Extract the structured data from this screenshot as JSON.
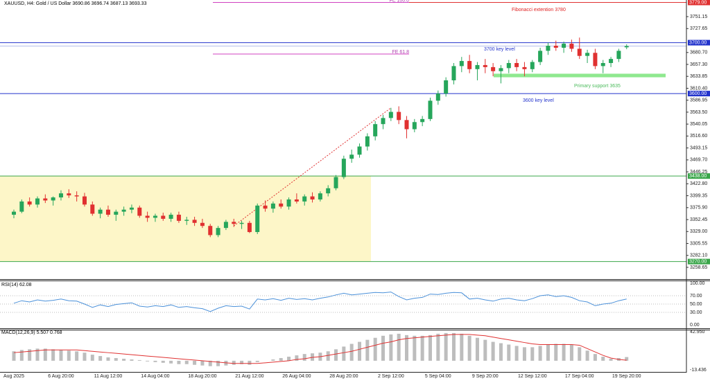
{
  "chart_data": [
    {
      "type": "candlestick",
      "title": "XAUUSD, H4:  Gold / US Dollar  3690.86 3696.74 3687.13 3693.33",
      "categories": [
        "Aug 2025",
        null,
        null,
        null,
        null,
        null,
        "6 Aug 20:00",
        null,
        null,
        null,
        null,
        null,
        "11 Aug 12:00",
        null,
        null,
        null,
        null,
        null,
        "14 Aug 04:00",
        null,
        null,
        null,
        null,
        null,
        "18 Aug 20:00",
        null,
        null,
        null,
        null,
        null,
        "21 Aug 12:00",
        null,
        null,
        null,
        null,
        null,
        "26 Aug 04:00",
        null,
        null,
        null,
        null,
        null,
        "28 Aug 20:00",
        null,
        null,
        null,
        null,
        null,
        "2 Sep 12:00",
        null,
        null,
        null,
        null,
        null,
        "5 Sep 04:00",
        null,
        null,
        null,
        null,
        null,
        "9 Sep 20:00",
        null,
        null,
        null,
        null,
        null,
        "12 Sep 12:00",
        null,
        null,
        null,
        null,
        null,
        "17 Sep 04:00",
        null,
        null,
        null,
        null,
        null,
        "19 Sep 20:00"
      ],
      "open": [
        3362,
        3368,
        3388,
        3382,
        3394,
        3390,
        3396,
        3404,
        3400,
        3398,
        3382,
        3364,
        3372,
        3362,
        3368,
        3372,
        3376,
        3360,
        3356,
        3360,
        3354,
        3362,
        3350,
        3352,
        3346,
        3340,
        3322,
        3336,
        3348,
        3344,
        3346,
        3328,
        3380,
        3374,
        3384,
        3378,
        3392,
        3388,
        3398,
        3392,
        3404,
        3414,
        3436,
        3472,
        3480,
        3496,
        3516,
        3540,
        3552,
        3564,
        3548,
        3530,
        3544,
        3550,
        3586,
        3600,
        3626,
        3654,
        3664,
        3648,
        3656,
        3652,
        3644,
        3650,
        3660,
        3652,
        3648,
        3662,
        3684,
        3694,
        3690,
        3698,
        3688,
        3674,
        3680,
        3654,
        3660,
        3668,
        3690.86
      ],
      "high": [
        3372,
        3392,
        3396,
        3398,
        3402,
        3398,
        3410,
        3412,
        3408,
        3405,
        3388,
        3376,
        3380,
        3372,
        3378,
        3382,
        3380,
        3368,
        3364,
        3366,
        3366,
        3368,
        3358,
        3358,
        3354,
        3344,
        3340,
        3352,
        3354,
        3350,
        3350,
        3384,
        3390,
        3388,
        3392,
        3396,
        3404,
        3402,
        3406,
        3408,
        3420,
        3440,
        3478,
        3490,
        3502,
        3522,
        3546,
        3558,
        3572,
        3575,
        3556,
        3550,
        3556,
        3592,
        3606,
        3632,
        3660,
        3672,
        3676,
        3662,
        3668,
        3660,
        3656,
        3666,
        3668,
        3662,
        3666,
        3690,
        3700,
        3704,
        3702,
        3706,
        3710,
        3686,
        3688,
        3666,
        3672,
        3688,
        3696.74
      ],
      "low": [
        3355,
        3365,
        3378,
        3376,
        3385,
        3380,
        3390,
        3395,
        3388,
        3378,
        3360,
        3355,
        3358,
        3350,
        3360,
        3365,
        3356,
        3348,
        3348,
        3350,
        3348,
        3346,
        3342,
        3340,
        3336,
        3318,
        3318,
        3332,
        3338,
        3334,
        3326,
        3324,
        3368,
        3366,
        3374,
        3372,
        3384,
        3380,
        3386,
        3388,
        3398,
        3410,
        3432,
        3464,
        3474,
        3488,
        3508,
        3530,
        3546,
        3540,
        3512,
        3524,
        3536,
        3546,
        3578,
        3594,
        3618,
        3642,
        3640,
        3626,
        3640,
        3634,
        3620,
        3640,
        3644,
        3634,
        3642,
        3656,
        3676,
        3684,
        3680,
        3682,
        3668,
        3660,
        3648,
        3640,
        3652,
        3662,
        3687.13
      ],
      "close": [
        3368,
        3388,
        3382,
        3394,
        3390,
        3396,
        3404,
        3400,
        3398,
        3382,
        3364,
        3372,
        3362,
        3368,
        3372,
        3376,
        3360,
        3356,
        3360,
        3354,
        3362,
        3350,
        3352,
        3346,
        3340,
        3322,
        3336,
        3348,
        3344,
        3346,
        3328,
        3380,
        3374,
        3384,
        3378,
        3392,
        3388,
        3398,
        3392,
        3404,
        3414,
        3436,
        3472,
        3480,
        3496,
        3516,
        3540,
        3552,
        3564,
        3548,
        3530,
        3544,
        3550,
        3586,
        3600,
        3626,
        3654,
        3664,
        3648,
        3656,
        3652,
        3644,
        3650,
        3660,
        3652,
        3648,
        3662,
        3684,
        3694,
        3690,
        3698,
        3688,
        3674,
        3680,
        3654,
        3660,
        3668,
        3684,
        3693.33
      ],
      "up_color": "#26a65b",
      "down_color": "#e03030",
      "ylim": [
        3258.65,
        3751.15
      ],
      "yticks": [
        {
          "value": 3751.15,
          "label": "3751.15"
        },
        {
          "value": 3727.65,
          "label": "3727.65"
        },
        {
          "value": 3680.7,
          "label": "3680.70"
        },
        {
          "value": 3657.3,
          "label": "3657.30"
        },
        {
          "value": 3633.85,
          "label": "3633.85"
        },
        {
          "value": 3610.4,
          "label": "3610.40"
        },
        {
          "value": 3586.95,
          "label": "3586.95"
        },
        {
          "value": 3563.5,
          "label": "3563.50"
        },
        {
          "value": 3540.05,
          "label": "3540.05"
        },
        {
          "value": 3516.6,
          "label": "3516.60"
        },
        {
          "value": 3493.15,
          "label": "3493.15"
        },
        {
          "value": 3469.7,
          "label": "3469.70"
        },
        {
          "value": 3446.25,
          "label": "3446.25"
        },
        {
          "value": 3422.8,
          "label": "3422.80"
        },
        {
          "value": 3399.35,
          "label": "3399.35"
        },
        {
          "value": 3375.9,
          "label": "3375.90"
        },
        {
          "value": 3352.45,
          "label": "3352.45"
        },
        {
          "value": 3329,
          "label": "3329.00"
        },
        {
          "value": 3305.55,
          "label": "3305.55"
        },
        {
          "value": 3282.1,
          "label": "3282.10"
        },
        {
          "value": 3258.65,
          "label": "3258.65"
        }
      ],
      "levels": [
        {
          "value": 3779,
          "label": "3779.00",
          "color": "#e03030"
        },
        {
          "value": 3700,
          "label": "3700.00",
          "color": "#2233cc"
        },
        {
          "value": 3600,
          "label": "3600.00",
          "color": "#2233cc"
        },
        {
          "value": 3438,
          "label": "3438.00",
          "color": "#3aa64a"
        },
        {
          "value": 3270,
          "label": "3270.00",
          "color": "#3aa64a"
        }
      ],
      "fib_levels": [
        {
          "value": 3779,
          "label": "FE 100.0"
        },
        {
          "value": 3677.7,
          "label": "FE 61.8"
        }
      ],
      "zones": [
        {
          "from": 3270,
          "to": 3438,
          "color": "#fdf6c8"
        },
        {
          "from": 3632,
          "to": 3639,
          "color": "#8fe88f"
        }
      ],
      "trendline": [
        3340,
        3572
      ],
      "annotations": [
        {
          "text": "Fibonacci extention 3780",
          "color": "#e02020"
        },
        {
          "text": "3700 key level",
          "color": "#2233cc"
        },
        {
          "text": "Primary support 3635",
          "color": "#4cbb5c"
        },
        {
          "text": "3600 key level",
          "color": "#2233cc"
        }
      ]
    },
    {
      "type": "line",
      "title": "RSI(14) 62.08",
      "color": "#4a90d9",
      "ylim": [
        0,
        100
      ],
      "yticks": [
        {
          "value": 100,
          "label": "100.00"
        },
        {
          "value": 70,
          "label": "70.00"
        },
        {
          "value": 50,
          "label": "50.00"
        },
        {
          "value": 30,
          "label": "30.00"
        },
        {
          "value": 0,
          "label": "0.00"
        }
      ],
      "values": [
        52,
        58,
        55,
        60,
        57,
        59,
        62,
        58,
        57,
        50,
        42,
        48,
        44,
        49,
        51,
        53,
        45,
        43,
        46,
        44,
        48,
        42,
        44,
        41,
        39,
        32,
        40,
        46,
        44,
        45,
        38,
        62,
        60,
        63,
        59,
        64,
        61,
        63,
        60,
        64,
        67,
        72,
        76,
        72,
        74,
        76,
        78,
        77,
        79,
        68,
        60,
        64,
        66,
        74,
        73,
        76,
        78,
        77,
        62,
        64,
        60,
        57,
        62,
        64,
        60,
        58,
        63,
        70,
        72,
        68,
        70,
        66,
        58,
        55,
        46,
        50,
        52,
        58,
        62.08
      ]
    },
    {
      "type": "bar",
      "title": "MACD(12,26,9) 5.507 0.768",
      "ylim": [
        -13.436,
        42.95
      ],
      "yticks": [
        {
          "value": 42.95,
          "label": "42.950"
        },
        -13.436
      ],
      "series": [
        {
          "name": "MACD",
          "color": "#bdbdbd",
          "values": [
            14,
            16,
            17,
            18,
            18,
            17,
            16,
            15,
            14,
            12,
            9,
            7,
            5,
            4,
            3,
            2,
            1,
            -1,
            -2,
            -3,
            -4,
            -5,
            -5,
            -6,
            -7,
            -8,
            -8,
            -7,
            -6,
            -5,
            -6,
            -2,
            0,
            2,
            4,
            6,
            8,
            10,
            11,
            12,
            14,
            17,
            21,
            25,
            28,
            31,
            34,
            37,
            39,
            40,
            38,
            37,
            37,
            38,
            40,
            41,
            41,
            40,
            37,
            34,
            31,
            28,
            26,
            24,
            22,
            20,
            20,
            22,
            24,
            25,
            25,
            24,
            20,
            15,
            10,
            6,
            3,
            4,
            5.507
          ]
        },
        {
          "name": "Signal",
          "color": "#e03030",
          "values": [
            12,
            13,
            14,
            15,
            16,
            16,
            16,
            16,
            16,
            15,
            14,
            13,
            12,
            11,
            10,
            9,
            8,
            7,
            6,
            5,
            4,
            3,
            2,
            1,
            0,
            -1,
            -2,
            -3,
            -4,
            -4,
            -4,
            -4,
            -3,
            -2,
            -1,
            0,
            2,
            3,
            5,
            6,
            8,
            10,
            12,
            14,
            17,
            20,
            23,
            26,
            28,
            31,
            33,
            34,
            35,
            36,
            37,
            38,
            39,
            39,
            39,
            38,
            37,
            35,
            33,
            31,
            29,
            27,
            25,
            24,
            24,
            24,
            24,
            24,
            23,
            18,
            13,
            8,
            4,
            2,
            0.768
          ]
        }
      ]
    }
  ]
}
